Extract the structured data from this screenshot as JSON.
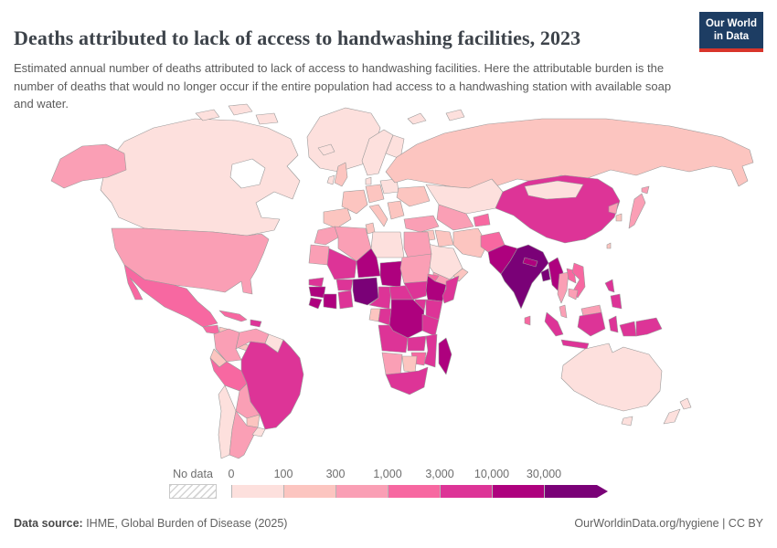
{
  "header": {
    "title": "Deaths attributed to lack of access to handwashing facilities, 2023",
    "subtitle": "Estimated annual number of deaths attributed to lack of access to handwashing facilities. Here the attributable burden is the number of deaths that would no longer occur if the entire population had access to a handwashing station with available soap and water.",
    "logo": {
      "line1": "Our World",
      "line2": "in Data",
      "bg_color": "#1d3d63",
      "bar_color": "#d8352b"
    }
  },
  "legend": {
    "no_data_label": "No data"
  },
  "footer": {
    "source_label": "Data source:",
    "source_text": " IHME, Global Burden of Disease (2025)",
    "url": "OurWorldinData.org/hygiene",
    "separator": " | ",
    "license": "CC BY"
  },
  "chart_data": {
    "type": "choropleth_map",
    "title": "Deaths attributed to lack of access to handwashing facilities, 2023",
    "year": 2023,
    "unit": "deaths per year",
    "legend_position": "bottom",
    "legend_ticks": [
      "0",
      "100",
      "300",
      "1,000",
      "3,000",
      "10,000",
      "30,000"
    ],
    "bins": [
      {
        "range": "0-100",
        "color": "#fde0dd"
      },
      {
        "range": "100-300",
        "color": "#fcc5c0"
      },
      {
        "range": "300-1,000",
        "color": "#fa9fb5"
      },
      {
        "range": "1,000-3,000",
        "color": "#f768a1"
      },
      {
        "range": "3,000-10,000",
        "color": "#dd3497"
      },
      {
        "range": "10,000-30,000",
        "color": "#ae017e"
      },
      {
        "range": "30,000+",
        "color": "#7a0177"
      }
    ],
    "countries": [
      {
        "id": "canada",
        "name": "Canada",
        "bin": 0
      },
      {
        "id": "greenland",
        "name": "Greenland",
        "bin": 0
      },
      {
        "id": "united-states",
        "name": "United States",
        "bin": 2
      },
      {
        "id": "mexico",
        "name": "Mexico",
        "bin": 3
      },
      {
        "id": "guatemala",
        "name": "Guatemala",
        "bin": 3
      },
      {
        "id": "honduras-nicaragua",
        "name": "Honduras/Nicaragua",
        "bin": 1
      },
      {
        "id": "costa-rica-panama",
        "name": "Costa Rica/Panama",
        "bin": 1
      },
      {
        "id": "cuba",
        "name": "Cuba",
        "bin": 3
      },
      {
        "id": "hispaniola",
        "name": "Haiti/Dominican Republic",
        "bin": 4
      },
      {
        "id": "colombia",
        "name": "Colombia",
        "bin": 2
      },
      {
        "id": "venezuela",
        "name": "Venezuela",
        "bin": 2
      },
      {
        "id": "guyanas",
        "name": "Guyana/Suriname",
        "bin": 0
      },
      {
        "id": "brazil",
        "name": "Brazil",
        "bin": 4
      },
      {
        "id": "ecuador",
        "name": "Ecuador",
        "bin": 1
      },
      {
        "id": "peru",
        "name": "Peru",
        "bin": 3
      },
      {
        "id": "bolivia",
        "name": "Bolivia",
        "bin": 2
      },
      {
        "id": "paraguay",
        "name": "Paraguay",
        "bin": 1
      },
      {
        "id": "chile",
        "name": "Chile",
        "bin": 0
      },
      {
        "id": "argentina",
        "name": "Argentina",
        "bin": 2
      },
      {
        "id": "uruguay",
        "name": "Uruguay",
        "bin": 0
      },
      {
        "id": "iceland",
        "name": "Iceland",
        "bin": 0
      },
      {
        "id": "united-kingdom",
        "name": "United Kingdom",
        "bin": 1
      },
      {
        "id": "ireland",
        "name": "Ireland",
        "bin": 0
      },
      {
        "id": "norway-sweden",
        "name": "Norway/Sweden",
        "bin": 0
      },
      {
        "id": "finland",
        "name": "Finland",
        "bin": 0
      },
      {
        "id": "denmark",
        "name": "Denmark",
        "bin": 0
      },
      {
        "id": "germany",
        "name": "Germany",
        "bin": 1
      },
      {
        "id": "france",
        "name": "France",
        "bin": 1
      },
      {
        "id": "spain-portugal",
        "name": "Spain/Portugal",
        "bin": 1
      },
      {
        "id": "italy",
        "name": "Italy",
        "bin": 1
      },
      {
        "id": "poland-baltics",
        "name": "Poland/Baltics",
        "bin": 0
      },
      {
        "id": "ukraine-romania",
        "name": "Ukraine/Romania",
        "bin": 1
      },
      {
        "id": "balkans",
        "name": "Balkans",
        "bin": 1
      },
      {
        "id": "turkey",
        "name": "Turkey",
        "bin": 2
      },
      {
        "id": "russia",
        "name": "Russia",
        "bin": 1
      },
      {
        "id": "arctic-islands",
        "name": "Arctic islands",
        "bin": 0
      },
      {
        "id": "kazakhstan",
        "name": "Kazakhstan",
        "bin": 0
      },
      {
        "id": "uzbekistan-turkmenistan",
        "name": "Uzbekistan/Turkmenistan",
        "bin": 2
      },
      {
        "id": "kyrgyzstan-tajikistan",
        "name": "Kyrgyzstan/Tajikistan",
        "bin": 3
      },
      {
        "id": "syria-levant",
        "name": "Syria/Levant",
        "bin": 1
      },
      {
        "id": "iraq",
        "name": "Iraq",
        "bin": 1
      },
      {
        "id": "iran",
        "name": "Iran",
        "bin": 1
      },
      {
        "id": "saudi-arabia",
        "name": "Saudi Arabia",
        "bin": 0
      },
      {
        "id": "yemen",
        "name": "Yemen",
        "bin": 2
      },
      {
        "id": "oman",
        "name": "Oman",
        "bin": 1
      },
      {
        "id": "afghanistan",
        "name": "Afghanistan",
        "bin": 3
      },
      {
        "id": "pakistan",
        "name": "Pakistan",
        "bin": 5
      },
      {
        "id": "india",
        "name": "India",
        "bin": 6
      },
      {
        "id": "nepal",
        "name": "Nepal",
        "bin": 5
      },
      {
        "id": "bangladesh",
        "name": "Bangladesh",
        "bin": 6
      },
      {
        "id": "sri-lanka",
        "name": "Sri Lanka",
        "bin": 3
      },
      {
        "id": "china",
        "name": "China",
        "bin": 4
      },
      {
        "id": "mongolia",
        "name": "Mongolia",
        "bin": 0
      },
      {
        "id": "north-korea",
        "name": "North Korea",
        "bin": 2
      },
      {
        "id": "south-korea",
        "name": "South Korea",
        "bin": 1
      },
      {
        "id": "japan",
        "name": "Japan",
        "bin": 2
      },
      {
        "id": "taiwan",
        "name": "Taiwan",
        "bin": 1
      },
      {
        "id": "myanmar",
        "name": "Myanmar",
        "bin": 5
      },
      {
        "id": "thailand",
        "name": "Thailand",
        "bin": 2
      },
      {
        "id": "laos",
        "name": "Laos",
        "bin": 3
      },
      {
        "id": "vietnam",
        "name": "Vietnam",
        "bin": 3
      },
      {
        "id": "cambodia",
        "name": "Cambodia",
        "bin": 2
      },
      {
        "id": "malaysia",
        "name": "Malaysia",
        "bin": 2
      },
      {
        "id": "indonesia",
        "name": "Indonesia",
        "bin": 4
      },
      {
        "id": "philippines",
        "name": "Philippines",
        "bin": 4
      },
      {
        "id": "papua-new-guinea",
        "name": "Papua New Guinea",
        "bin": 4
      },
      {
        "id": "australia",
        "name": "Australia",
        "bin": 0
      },
      {
        "id": "new-zealand",
        "name": "New Zealand",
        "bin": 0
      },
      {
        "id": "morocco",
        "name": "Morocco",
        "bin": 2
      },
      {
        "id": "algeria",
        "name": "Algeria",
        "bin": 2
      },
      {
        "id": "tunisia",
        "name": "Tunisia",
        "bin": 1
      },
      {
        "id": "libya",
        "name": "Libya",
        "bin": 0
      },
      {
        "id": "egypt",
        "name": "Egypt",
        "bin": 2
      },
      {
        "id": "mauritania",
        "name": "Mauritania",
        "bin": 2
      },
      {
        "id": "mali",
        "name": "Mali",
        "bin": 4
      },
      {
        "id": "niger",
        "name": "Niger",
        "bin": 5
      },
      {
        "id": "chad",
        "name": "Chad",
        "bin": 5
      },
      {
        "id": "sudan",
        "name": "Sudan",
        "bin": 2
      },
      {
        "id": "eritrea",
        "name": "Eritrea",
        "bin": 3
      },
      {
        "id": "senegal",
        "name": "Senegal",
        "bin": 4
      },
      {
        "id": "guinea",
        "name": "Guinea",
        "bin": 5
      },
      {
        "id": "sierra-leone-liberia",
        "name": "Sierra Leone/Liberia",
        "bin": 5
      },
      {
        "id": "ivory-coast",
        "name": "Côte d'Ivoire",
        "bin": 5
      },
      {
        "id": "burkina-faso",
        "name": "Burkina Faso",
        "bin": 4
      },
      {
        "id": "ghana-togo-benin",
        "name": "Ghana/Togo/Benin",
        "bin": 4
      },
      {
        "id": "nigeria",
        "name": "Nigeria",
        "bin": 6
      },
      {
        "id": "cameroon",
        "name": "Cameroon",
        "bin": 4
      },
      {
        "id": "central-african-republic",
        "name": "Central African Republic",
        "bin": 4
      },
      {
        "id": "south-sudan",
        "name": "South Sudan",
        "bin": 4
      },
      {
        "id": "ethiopia",
        "name": "Ethiopia",
        "bin": 5
      },
      {
        "id": "somalia",
        "name": "Somalia",
        "bin": 4
      },
      {
        "id": "kenya",
        "name": "Kenya",
        "bin": 4
      },
      {
        "id": "uganda",
        "name": "Uganda",
        "bin": 4
      },
      {
        "id": "gabon",
        "name": "Gabon",
        "bin": 1
      },
      {
        "id": "congo",
        "name": "Congo",
        "bin": 4
      },
      {
        "id": "drc",
        "name": "Democratic Republic of Congo",
        "bin": 5
      },
      {
        "id": "tanzania",
        "name": "Tanzania",
        "bin": 4
      },
      {
        "id": "angola",
        "name": "Angola",
        "bin": 4
      },
      {
        "id": "zambia",
        "name": "Zambia",
        "bin": 4
      },
      {
        "id": "mozambique",
        "name": "Mozambique",
        "bin": 4
      },
      {
        "id": "zimbabwe",
        "name": "Zimbabwe",
        "bin": 3
      },
      {
        "id": "namibia",
        "name": "Namibia",
        "bin": 2
      },
      {
        "id": "botswana",
        "name": "Botswana",
        "bin": 1
      },
      {
        "id": "south-africa",
        "name": "South Africa",
        "bin": 4
      },
      {
        "id": "madagascar",
        "name": "Madagascar",
        "bin": 5
      }
    ]
  }
}
